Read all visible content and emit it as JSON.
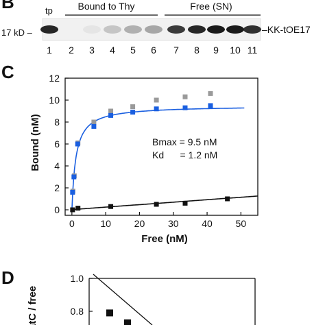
{
  "blot": {
    "panel_letter": "B",
    "lane_label_tp": "tp",
    "group_bound": "Bound to Thy",
    "group_free": "Free (SN)",
    "marker": "17 kD –",
    "band_label": "–KK-tOE17",
    "lane_numbers": [
      "1",
      "2",
      "3",
      "4",
      "5",
      "6",
      "7",
      "8",
      "9",
      "10",
      "11"
    ],
    "band_intensity": [
      0.95,
      0.0,
      0.05,
      0.2,
      0.3,
      0.35,
      0.85,
      0.95,
      1.0,
      1.0,
      0.9
    ]
  },
  "panel_c": {
    "letter": "C",
    "bmax_text": "Bmax = 9.5 nM",
    "kd_text": "Kd      = 1.2 nM"
  },
  "panel_d": {
    "letter": "D",
    "ylabel_partial": "atC / free"
  },
  "colors": {
    "blue": "#1a5fe0",
    "gray": "#9a9a9a",
    "black": "#111111",
    "band": "#1a1a1a"
  },
  "chart_data": [
    {
      "type": "scatter",
      "title": "",
      "xlabel": "Free (nM)",
      "ylabel": "Bound (nM)",
      "xlim": [
        -2,
        55
      ],
      "ylim": [
        -0.5,
        12
      ],
      "x_ticks": [
        0,
        10,
        20,
        30,
        40,
        50
      ],
      "y_ticks": [
        0,
        2,
        4,
        6,
        8,
        10,
        12
      ],
      "grid": false,
      "series": [
        {
          "color": "gray",
          "marker": "square",
          "x": [
            0.3,
            0.7,
            1.8,
            6.5,
            11.5,
            18,
            25,
            33.5,
            41
          ],
          "y": [
            1.7,
            3.1,
            6.1,
            8.0,
            9.0,
            9.4,
            10.0,
            10.3,
            10.6
          ]
        },
        {
          "color": "blue",
          "marker": "square",
          "x": [
            0.2,
            0.6,
            1.7,
            6.5,
            11.5,
            18,
            25,
            33.5,
            41
          ],
          "y": [
            1.6,
            3.0,
            6.0,
            7.6,
            8.6,
            8.9,
            9.2,
            9.3,
            9.5
          ]
        },
        {
          "color": "black",
          "marker": "square",
          "x": [
            0.2,
            1.8,
            11.5,
            25,
            33.5,
            46
          ],
          "y": [
            0.0,
            0.15,
            0.3,
            0.5,
            0.6,
            1.0
          ]
        }
      ],
      "curves": [
        {
          "color": "blue",
          "model": "hyperbolic",
          "bmax": 9.5,
          "kd": 1.2,
          "x_range": [
            0,
            51
          ]
        },
        {
          "color": "black",
          "model": "linear",
          "slope": 0.0225,
          "intercept": 0.02,
          "x_range": [
            0,
            55
          ]
        }
      ]
    },
    {
      "type": "scatter",
      "title": "",
      "xlabel": "",
      "ylabel": "atC / free",
      "ylim_visible": [
        0.6,
        1.0
      ],
      "y_ticks": [
        0.8,
        1.0
      ],
      "series": [
        {
          "color": "black",
          "marker": "square",
          "y": [
            0.79,
            0.73
          ]
        }
      ]
    }
  ]
}
